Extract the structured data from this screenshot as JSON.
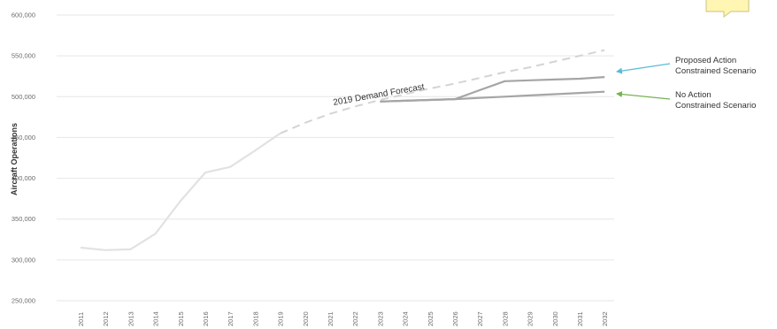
{
  "chart_data": {
    "type": "line",
    "title": "",
    "xlabel": "",
    "ylabel": "Aircraft Operations",
    "ylim": [
      250000,
      600000
    ],
    "yticks": [
      250000,
      300000,
      350000,
      400000,
      450000,
      500000,
      550000,
      600000
    ],
    "ytick_labels": [
      "250,000",
      "300,000",
      "350,000",
      "400,000",
      "450,000",
      "500,000",
      "550,000",
      "600,000"
    ],
    "x": [
      "2011",
      "2012",
      "2013",
      "2014",
      "2015",
      "2016",
      "2017",
      "2018",
      "2019",
      "2020",
      "2021",
      "2022",
      "2023",
      "2024",
      "2025",
      "2026",
      "2027",
      "2028",
      "2029",
      "2030",
      "2031",
      "2032"
    ],
    "grid": true,
    "series": [
      {
        "name": "",
        "style": "solid",
        "color": "#e2e2e2",
        "x": [
          "2011",
          "2012",
          "2013",
          "2014",
          "2015",
          "2016",
          "2017",
          "2018",
          "2019"
        ],
        "values": [
          315000,
          312000,
          313000,
          332000,
          372000,
          407000,
          414000,
          434000,
          455000
        ]
      },
      {
        "name": "2019 Demand Forecast",
        "style": "dashed",
        "color": "#d4d4d4",
        "x": [
          "2019",
          "2020",
          "2021",
          "2022",
          "2023",
          "2024",
          "2025",
          "2026",
          "2027",
          "2028",
          "2029",
          "2030",
          "2031",
          "2032"
        ],
        "values": [
          455000,
          468000,
          479000,
          488000,
          496000,
          503000,
          510000,
          516000,
          523000,
          530000,
          536000,
          543000,
          550000,
          557000
        ]
      },
      {
        "name": "Proposed Action Constrained Scenario",
        "style": "solid",
        "color": "#a5a5a5",
        "x": [
          "2023",
          "2024",
          "2025",
          "2026",
          "2027",
          "2028",
          "2029",
          "2030",
          "2031",
          "2032"
        ],
        "values": [
          494000,
          495000,
          496000,
          497000,
          508000,
          519000,
          520000,
          521000,
          522000,
          524000
        ]
      },
      {
        "name": "No Action Constrained Scenario",
        "style": "solid",
        "color": "#a5a5a5",
        "x": [
          "2023",
          "2024",
          "2025",
          "2026",
          "2027",
          "2028",
          "2029",
          "2030",
          "2031",
          "2032"
        ],
        "values": [
          494000,
          495000,
          496000,
          497000,
          498500,
          500000,
          501500,
          503000,
          504500,
          506000
        ]
      }
    ],
    "annotations": [
      {
        "text": "2019 Demand Forecast",
        "series": "2019 Demand Forecast"
      },
      {
        "lines": [
          "Proposed Action",
          "Constrained Scenario"
        ],
        "arrow_color": "#5bbad5",
        "series": "Proposed Action Constrained Scenario"
      },
      {
        "lines": [
          "No Action",
          "Constrained Scenario"
        ],
        "arrow_color": "#77b255",
        "series": "No Action Constrained Scenario"
      }
    ]
  },
  "callout_icon": "speech-bubble-icon",
  "callout_color": "#fff6b3"
}
